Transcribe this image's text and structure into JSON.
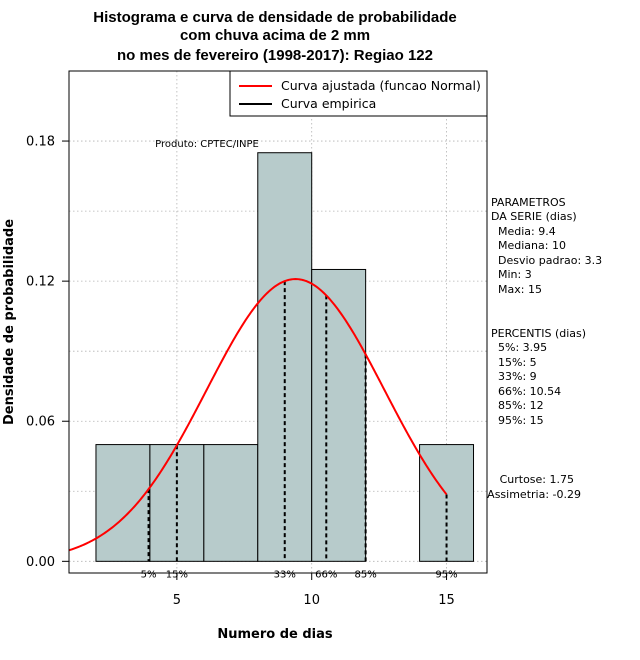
{
  "chart_data": {
    "type": "histogram",
    "title": [
      "Histograma e curva de densidade de probabilidade",
      "com chuva acima de 2 mm",
      "no mes de fevereiro (1998-2017): Regiao 122"
    ],
    "xlabel": "Numero de dias",
    "ylabel": "Densidade de probabilidade",
    "xlim": [
      1,
      16.5
    ],
    "ylim": [
      -0.005,
      0.21
    ],
    "xticks": [
      5,
      10,
      15
    ],
    "yticks": [
      0.0,
      0.06,
      0.12,
      0.18
    ],
    "ytick_labels": [
      "0.00",
      "0.06",
      "0.12",
      "0.18"
    ],
    "bins": [
      {
        "x0": 2,
        "x1": 4,
        "density": 0.05
      },
      {
        "x0": 4,
        "x1": 6,
        "density": 0.05
      },
      {
        "x0": 6,
        "x1": 8,
        "density": 0.05
      },
      {
        "x0": 8,
        "x1": 10,
        "density": 0.175
      },
      {
        "x0": 10,
        "x1": 12,
        "density": 0.125
      },
      {
        "x0": 12,
        "x1": 14,
        "density": 0
      },
      {
        "x0": 14,
        "x1": 16,
        "density": 0.05
      }
    ],
    "normal_curve": {
      "mean": 9.4,
      "sd": 3.3,
      "x_from": 1,
      "x_to": 15,
      "color": "#ff0000"
    },
    "percentiles": [
      {
        "label": "5%",
        "x": 3.95
      },
      {
        "label": "15%",
        "x": 5
      },
      {
        "label": "33%",
        "x": 9
      },
      {
        "label": "66%",
        "x": 10.54
      },
      {
        "label": "85%",
        "x": 12
      },
      {
        "label": "95%",
        "x": 15
      }
    ],
    "legend": [
      {
        "label": "Curva ajustada (funcao Normal)",
        "color": "#ff0000"
      },
      {
        "label": "Curva empirica",
        "color": "#000000"
      }
    ],
    "annotation": "Produto: CPTEC/INPE",
    "bar_color": "#b7cbcb",
    "grid": true
  },
  "side_panel": {
    "params_title": [
      "PARAMETROS",
      "DA SERIE (dias)"
    ],
    "params": [
      "Media: 9.4",
      "Mediana: 10",
      "Desvio padrao: 3.3",
      "Min: 3",
      "Max: 15"
    ],
    "pct_title": "PERCENTIS (dias)",
    "pcts": [
      "5%: 3.95",
      "15%: 5",
      "33%: 9",
      "66%: 10.54",
      "85%: 12",
      "95%: 15"
    ],
    "stats": [
      "Curtose: 1.75",
      "Assimetria: -0.29"
    ]
  }
}
